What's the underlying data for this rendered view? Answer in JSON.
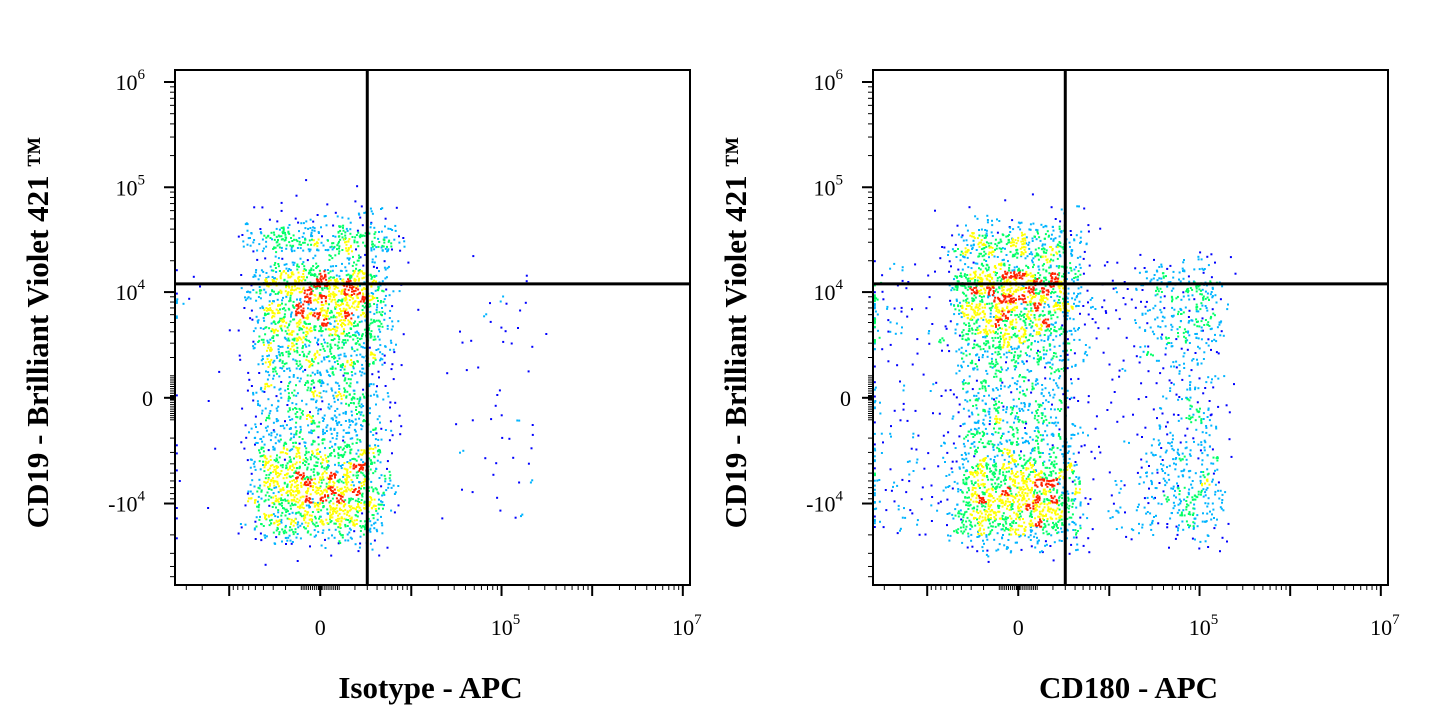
{
  "chart_data": [
    {
      "type": "scatter",
      "subtype": "flow-cytometry-density-dot-plot",
      "title": "",
      "xlabel": "Isotype - APC",
      "ylabel": "CD19 - Brilliant Violet 421 ™",
      "x_scale": "biexponential",
      "y_scale": "biexponential",
      "x_ticks": [
        {
          "value": 0,
          "base": "0",
          "exp": ""
        },
        {
          "value": 100000,
          "base": "10",
          "exp": "5"
        },
        {
          "value": 10000000,
          "base": "10",
          "exp": "7"
        }
      ],
      "y_ticks": [
        {
          "value": 1000000,
          "base": "10",
          "exp": "6"
        },
        {
          "value": 100000,
          "base": "10",
          "exp": "5"
        },
        {
          "value": 10000,
          "base": "10",
          "exp": "4"
        },
        {
          "value": 0,
          "base": "0",
          "exp": ""
        },
        {
          "value": -10000,
          "base": "-10",
          "exp": "4"
        }
      ],
      "quadrant_gate": {
        "x": 3000,
        "y": 12000
      },
      "populations": [
        {
          "center": [
            0,
            0
          ],
          "spread": [
            2500,
            9000
          ],
          "count": 3200,
          "shape": "ellipse"
        },
        {
          "center": [
            300,
            25000
          ],
          "spread": [
            3000,
            12000
          ],
          "count": 320,
          "shape": "tail-up"
        },
        {
          "center": [
            60000,
            1000
          ],
          "spread": [
            80000,
            8000
          ],
          "count": 90,
          "shape": "sparse"
        }
      ],
      "colormap": [
        "#0000ff",
        "#00b4ff",
        "#00ff66",
        "#ffff00",
        "#ff2200"
      ]
    },
    {
      "type": "scatter",
      "subtype": "flow-cytometry-density-dot-plot",
      "title": "",
      "xlabel": "CD180 - APC",
      "ylabel": "CD19 - Brilliant Violet 421 ™",
      "x_scale": "biexponential",
      "y_scale": "biexponential",
      "x_ticks": [
        {
          "value": 0,
          "base": "0",
          "exp": ""
        },
        {
          "value": 100000,
          "base": "10",
          "exp": "5"
        },
        {
          "value": 10000000,
          "base": "10",
          "exp": "7"
        }
      ],
      "y_ticks": [
        {
          "value": 1000000,
          "base": "10",
          "exp": "6"
        },
        {
          "value": 100000,
          "base": "10",
          "exp": "5"
        },
        {
          "value": 10000,
          "base": "10",
          "exp": "4"
        },
        {
          "value": 0,
          "base": "0",
          "exp": ""
        },
        {
          "value": -10000,
          "base": "-10",
          "exp": "4"
        }
      ],
      "quadrant_gate": {
        "x": 3000,
        "y": 12000
      },
      "populations": [
        {
          "center": [
            -200,
            0
          ],
          "spread": [
            2200,
            10000
          ],
          "count": 3000,
          "shape": "ellipse"
        },
        {
          "center": [
            -200,
            22000
          ],
          "spread": [
            2500,
            10000
          ],
          "count": 300,
          "shape": "tail-up"
        },
        {
          "center": [
            50000,
            0
          ],
          "spread": [
            60000,
            9000
          ],
          "count": 1100,
          "shape": "cluster"
        }
      ],
      "colormap": [
        "#0000ff",
        "#00b4ff",
        "#00ff66",
        "#ffff00",
        "#ff2200"
      ]
    }
  ]
}
